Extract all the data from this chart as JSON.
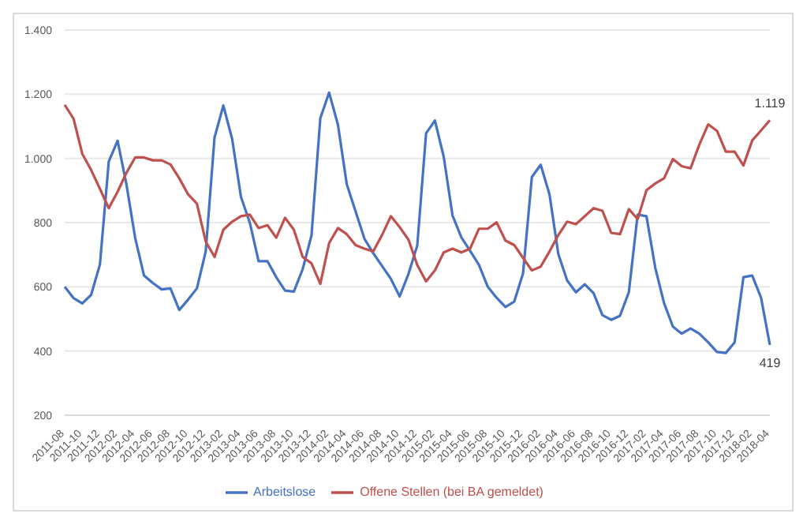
{
  "chart_data": {
    "type": "line",
    "categories": [
      "2011-08",
      null,
      "2011-10",
      null,
      "2011-12",
      null,
      "2012-02",
      null,
      "2012-04",
      null,
      "2012-06",
      null,
      "2012-08",
      null,
      "2012-10",
      null,
      "2012-12",
      null,
      "2013-02",
      null,
      "2013-04",
      null,
      "2013-06",
      null,
      "2013-08",
      null,
      "2013-10",
      null,
      "2013-12",
      null,
      "2014-02",
      null,
      "2014-04",
      null,
      "2014-06",
      null,
      "2014-08",
      null,
      "2014-10",
      null,
      "2014-12",
      null,
      "2015-02",
      null,
      "2015-04",
      null,
      "2015-06",
      null,
      "2015-08",
      null,
      "2015-10",
      null,
      "2015-12",
      null,
      "2016-02",
      null,
      "2016-04",
      null,
      "2016-06",
      null,
      "2016-08",
      null,
      "2016-10",
      null,
      "2016-12",
      null,
      "2017-02",
      null,
      "2017-04",
      null,
      "2017-06",
      null,
      "2017-08",
      null,
      "2017-10",
      null,
      "2017-12",
      null,
      "2018-02",
      null,
      "2018-04"
    ],
    "series": [
      {
        "name": "Arbeitslose",
        "color": "#4472c4",
        "values": [
          600,
          565,
          548,
          575,
          670,
          990,
          1055,
          920,
          752,
          635,
          612,
          592,
          595,
          528,
          560,
          595,
          710,
          1065,
          1165,
          1060,
          880,
          800,
          680,
          680,
          630,
          588,
          585,
          655,
          760,
          1125,
          1205,
          1105,
          920,
          835,
          750,
          705,
          665,
          625,
          570,
          640,
          729,
          1078,
          1118,
          1005,
          822,
          754,
          712,
          668,
          600,
          566,
          537,
          554,
          642,
          942,
          980,
          888,
          702,
          620,
          583,
          608,
          580,
          512,
          497,
          510,
          583,
          825,
          820,
          659,
          549,
          476,
          454,
          470,
          454,
          427,
          397,
          394,
          427,
          630,
          635,
          566,
          419
        ],
        "value_labels": [
          null,
          null,
          null,
          null,
          null,
          null,
          null,
          null,
          null,
          null,
          null,
          null,
          null,
          null,
          null,
          null,
          null,
          null,
          null,
          null,
          null,
          null,
          null,
          null,
          null,
          null,
          null,
          null,
          null,
          null,
          null,
          null,
          null,
          null,
          null,
          null,
          null,
          null,
          null,
          null,
          null,
          null,
          null,
          null,
          null,
          null,
          null,
          null,
          null,
          null,
          null,
          null,
          null,
          null,
          null,
          null,
          null,
          null,
          null,
          null,
          null,
          null,
          null,
          null,
          null,
          null,
          null,
          null,
          null,
          null,
          null,
          null,
          null,
          null,
          null,
          null,
          null,
          null,
          null,
          null,
          "419"
        ]
      },
      {
        "name": "Offene Stellen (bei BA gemeldet)",
        "color": "#c0504d",
        "values": [
          1167,
          1124,
          1014,
          964,
          905,
          845,
          896,
          955,
          1003,
          1003,
          994,
          994,
          981,
          938,
          888,
          859,
          741,
          693,
          778,
          803,
          820,
          825,
          783,
          792,
          753,
          815,
          778,
          693,
          673,
          609,
          736,
          783,
          764,
          730,
          719,
          710,
          761,
          820,
          786,
          747,
          668,
          617,
          651,
          707,
          719,
          707,
          719,
          781,
          781,
          801,
          744,
          730,
          690,
          651,
          663,
          710,
          761,
          803,
          795,
          820,
          845,
          837,
          768,
          764,
          842,
          811,
          901,
          922,
          938,
          998,
          976,
          969,
          1043,
          1106,
          1086,
          1021,
          1021,
          978,
          1056,
          1087,
          1119
        ],
        "value_labels": [
          null,
          null,
          null,
          null,
          null,
          null,
          null,
          null,
          null,
          null,
          null,
          null,
          null,
          null,
          null,
          null,
          null,
          null,
          null,
          null,
          null,
          null,
          null,
          null,
          null,
          null,
          null,
          null,
          null,
          null,
          null,
          null,
          null,
          null,
          null,
          null,
          null,
          null,
          null,
          null,
          null,
          null,
          null,
          null,
          null,
          null,
          null,
          null,
          null,
          null,
          null,
          null,
          null,
          null,
          null,
          null,
          null,
          null,
          null,
          null,
          null,
          null,
          null,
          null,
          null,
          null,
          null,
          null,
          null,
          null,
          null,
          null,
          null,
          null,
          null,
          null,
          null,
          null,
          null,
          null,
          "1.119"
        ]
      }
    ],
    "ylim": [
      200,
      1400
    ],
    "yticks": [
      {
        "value": 200,
        "label": "200"
      },
      {
        "value": 400,
        "label": "400"
      },
      {
        "value": 600,
        "label": "600"
      },
      {
        "value": 800,
        "label": "800"
      },
      {
        "value": 1000,
        "label": "1.000"
      },
      {
        "value": 1200,
        "label": "1.200"
      },
      {
        "value": 1400,
        "label": "1.400"
      }
    ],
    "grid": "y",
    "legend": "bottom",
    "marker": "none",
    "line_style": "solid"
  }
}
